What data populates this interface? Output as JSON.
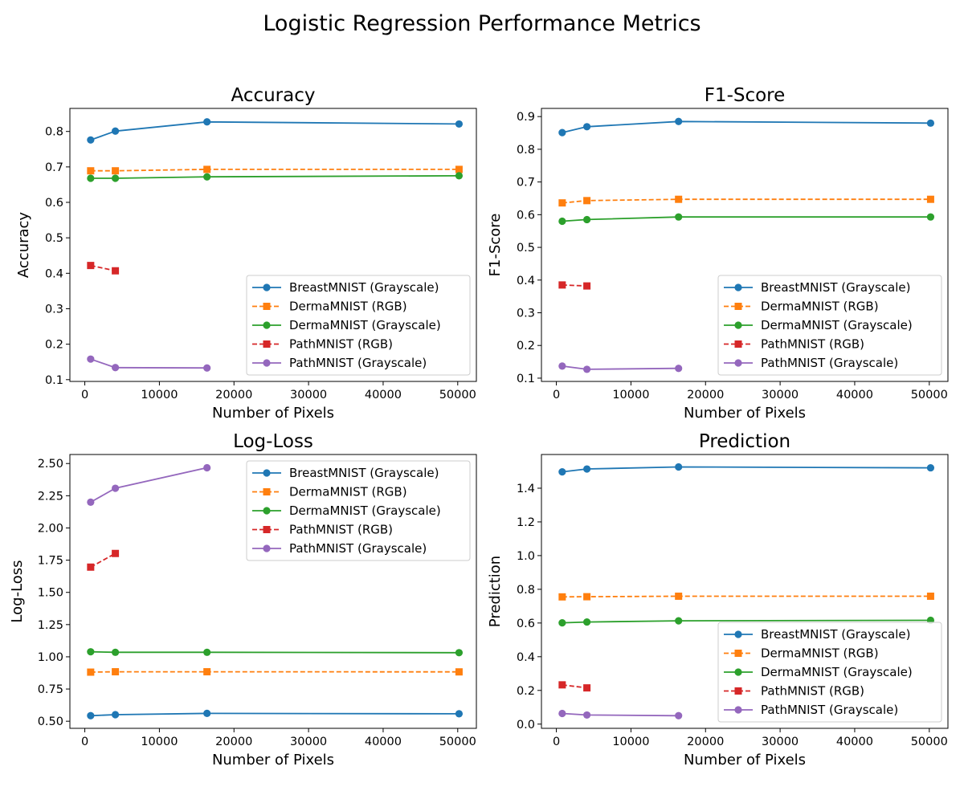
{
  "title": "Logistic Regression Performance Metrics",
  "legend_entries": [
    {
      "name": "BreastMNIST (Grayscale)",
      "color": "#1f77b4",
      "marker": "circle",
      "dash": false
    },
    {
      "name": "DermaMNIST (RGB)",
      "color": "#ff7f0e",
      "marker": "square",
      "dash": true
    },
    {
      "name": "DermaMNIST (Grayscale)",
      "color": "#2ca02c",
      "marker": "circle",
      "dash": false
    },
    {
      "name": "PathMNIST (RGB)",
      "color": "#d62728",
      "marker": "square",
      "dash": true
    },
    {
      "name": "PathMNIST (Grayscale)",
      "color": "#9467bd",
      "marker": "circle",
      "dash": false
    }
  ],
  "chart_data": [
    {
      "type": "line",
      "title": "Accuracy",
      "xlabel": "Number of Pixels",
      "ylabel": "Accuracy",
      "xlim": [
        -2000,
        52500
      ],
      "ylim": [
        0.095,
        0.865
      ],
      "xticks": [
        0,
        10000,
        20000,
        30000,
        40000,
        50000
      ],
      "yticks": [
        0.1,
        0.2,
        0.3,
        0.4,
        0.5,
        0.6,
        0.7,
        0.8
      ],
      "ytick_labels": [
        "0.1",
        "0.2",
        "0.3",
        "0.4",
        "0.5",
        "0.6",
        "0.7",
        "0.8"
      ],
      "legend_position": "lower right",
      "series": [
        {
          "name": "BreastMNIST (Grayscale)",
          "x": [
            784,
            4096,
            16384,
            50176
          ],
          "y": [
            0.776,
            0.801,
            0.827,
            0.821
          ]
        },
        {
          "name": "DermaMNIST (RGB)",
          "x": [
            784,
            4096,
            16384,
            50176
          ],
          "y": [
            0.689,
            0.689,
            0.693,
            0.693
          ]
        },
        {
          "name": "DermaMNIST (Grayscale)",
          "x": [
            784,
            4096,
            16384,
            50176
          ],
          "y": [
            0.668,
            0.668,
            0.672,
            0.675
          ]
        },
        {
          "name": "PathMNIST (RGB)",
          "x": [
            784,
            4096
          ],
          "y": [
            0.422,
            0.407
          ]
        },
        {
          "name": "PathMNIST (Grayscale)",
          "x": [
            784,
            4096,
            16384
          ],
          "y": [
            0.158,
            0.134,
            0.133
          ]
        }
      ]
    },
    {
      "type": "line",
      "title": "F1-Score",
      "xlabel": "Number of Pixels",
      "ylabel": "F1-Score",
      "xlim": [
        -2000,
        52500
      ],
      "ylim": [
        0.09,
        0.925
      ],
      "xticks": [
        0,
        10000,
        20000,
        30000,
        40000,
        50000
      ],
      "yticks": [
        0.1,
        0.2,
        0.3,
        0.4,
        0.5,
        0.6,
        0.7,
        0.8,
        0.9
      ],
      "ytick_labels": [
        "0.1",
        "0.2",
        "0.3",
        "0.4",
        "0.5",
        "0.6",
        "0.7",
        "0.8",
        "0.9"
      ],
      "legend_position": "lower right",
      "series": [
        {
          "name": "BreastMNIST (Grayscale)",
          "x": [
            784,
            4096,
            16384,
            50176
          ],
          "y": [
            0.851,
            0.869,
            0.885,
            0.88
          ]
        },
        {
          "name": "DermaMNIST (RGB)",
          "x": [
            784,
            4096,
            16384,
            50176
          ],
          "y": [
            0.636,
            0.643,
            0.647,
            0.647
          ]
        },
        {
          "name": "DermaMNIST (Grayscale)",
          "x": [
            784,
            4096,
            16384,
            50176
          ],
          "y": [
            0.58,
            0.585,
            0.593,
            0.593
          ]
        },
        {
          "name": "PathMNIST (RGB)",
          "x": [
            784,
            4096
          ],
          "y": [
            0.385,
            0.382
          ]
        },
        {
          "name": "PathMNIST (Grayscale)",
          "x": [
            784,
            4096,
            16384
          ],
          "y": [
            0.137,
            0.127,
            0.13
          ]
        }
      ]
    },
    {
      "type": "line",
      "title": "Log-Loss",
      "xlabel": "Number of Pixels",
      "ylabel": "Log-Loss",
      "xlim": [
        -2000,
        52500
      ],
      "ylim": [
        0.445,
        2.57
      ],
      "xticks": [
        0,
        10000,
        20000,
        30000,
        40000,
        50000
      ],
      "yticks": [
        0.5,
        0.75,
        1.0,
        1.25,
        1.5,
        1.75,
        2.0,
        2.25,
        2.5
      ],
      "ytick_labels": [
        "0.50",
        "0.75",
        "1.00",
        "1.25",
        "1.50",
        "1.75",
        "2.00",
        "2.25",
        "2.50"
      ],
      "legend_position": "upper right",
      "series": [
        {
          "name": "BreastMNIST (Grayscale)",
          "x": [
            784,
            4096,
            16384,
            50176
          ],
          "y": [
            0.543,
            0.551,
            0.561,
            0.558
          ]
        },
        {
          "name": "DermaMNIST (RGB)",
          "x": [
            784,
            4096,
            16384,
            50176
          ],
          "y": [
            0.881,
            0.884,
            0.884,
            0.883
          ]
        },
        {
          "name": "DermaMNIST (Grayscale)",
          "x": [
            784,
            4096,
            16384,
            50176
          ],
          "y": [
            1.039,
            1.035,
            1.035,
            1.032
          ]
        },
        {
          "name": "PathMNIST (RGB)",
          "x": [
            784,
            4096
          ],
          "y": [
            1.696,
            1.802
          ]
        },
        {
          "name": "PathMNIST (Grayscale)",
          "x": [
            784,
            4096,
            16384
          ],
          "y": [
            2.2,
            2.308,
            2.467
          ]
        }
      ]
    },
    {
      "type": "line",
      "title": "Prediction",
      "xlabel": "Number of Pixels",
      "ylabel": "Prediction",
      "xlim": [
        -2000,
        52500
      ],
      "ylim": [
        -0.025,
        1.6
      ],
      "xticks": [
        0,
        10000,
        20000,
        30000,
        40000,
        50000
      ],
      "yticks": [
        0.0,
        0.2,
        0.4,
        0.6,
        0.8,
        1.0,
        1.2,
        1.4
      ],
      "ytick_labels": [
        "0.0",
        "0.2",
        "0.4",
        "0.6",
        "0.8",
        "1.0",
        "1.2",
        "1.4"
      ],
      "legend_position": "lower right",
      "series": [
        {
          "name": "BreastMNIST (Grayscale)",
          "x": [
            784,
            4096,
            16384,
            50176
          ],
          "y": [
            1.497,
            1.514,
            1.526,
            1.521
          ]
        },
        {
          "name": "DermaMNIST (RGB)",
          "x": [
            784,
            4096,
            16384,
            50176
          ],
          "y": [
            0.755,
            0.756,
            0.759,
            0.759
          ]
        },
        {
          "name": "DermaMNIST (Grayscale)",
          "x": [
            784,
            4096,
            16384,
            50176
          ],
          "y": [
            0.601,
            0.606,
            0.613,
            0.616
          ]
        },
        {
          "name": "PathMNIST (RGB)",
          "x": [
            784,
            4096
          ],
          "y": [
            0.233,
            0.215
          ]
        },
        {
          "name": "PathMNIST (Grayscale)",
          "x": [
            784,
            4096,
            16384
          ],
          "y": [
            0.063,
            0.054,
            0.05
          ]
        }
      ]
    }
  ]
}
